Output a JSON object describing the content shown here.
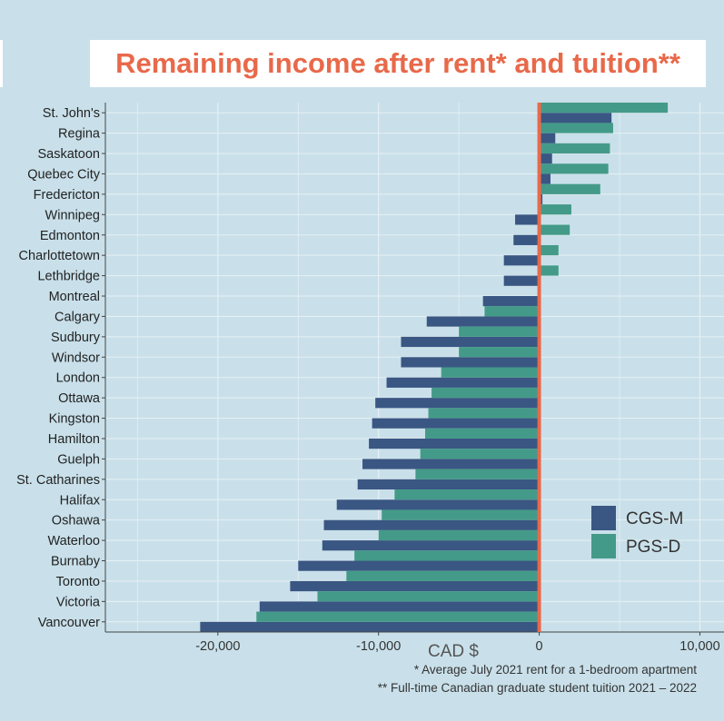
{
  "title": "Remaining income after rent* and tuition**",
  "footnotes": [
    "* Average July 2021 rent for a 1-bedroom apartment",
    "** Full-time Canadian graduate student tuition 2021 – 2022"
  ],
  "colors": {
    "background": "#c9e0ea",
    "cgs_m": "#3a5683",
    "pgs_d": "#449a88",
    "zero_line": "#e8694a",
    "title": "#e8694a"
  },
  "chart_data": {
    "type": "bar",
    "orientation": "horizontal",
    "xlabel": "CAD $",
    "ylabel": "",
    "xlim": [
      -27000,
      11500
    ],
    "x_ticks": [
      {
        "value": -20000,
        "label": "-20,000"
      },
      {
        "value": -10000,
        "label": "-10,000"
      },
      {
        "value": 0,
        "label": "0"
      },
      {
        "value": 10000,
        "label": "10,000"
      }
    ],
    "grid": true,
    "legend_position": "bottom-right",
    "categories": [
      "St. John's",
      "Regina",
      "Saskatoon",
      "Quebec City",
      "Fredericton",
      "Winnipeg",
      "Edmonton",
      "Charlottetown",
      "Lethbridge",
      "Montreal",
      "Calgary",
      "Sudbury",
      "Windsor",
      "London",
      "Ottawa",
      "Kingston",
      "Hamilton",
      "Guelph",
      "St. Catharines",
      "Halifax",
      "Oshawa",
      "Waterloo",
      "Burnaby",
      "Toronto",
      "Victoria",
      "Vancouver"
    ],
    "series": [
      {
        "name": "CGS-M",
        "color": "#3a5683",
        "values": [
          4500,
          1000,
          800,
          700,
          200,
          -1500,
          -1600,
          -2200,
          -2200,
          -3500,
          -7000,
          -8600,
          -8600,
          -9500,
          -10200,
          -10400,
          -10600,
          -11000,
          -11300,
          -12600,
          -13400,
          -13500,
          -15000,
          -15500,
          -17400,
          -21100
        ]
      },
      {
        "name": "PGS-D",
        "color": "#449a88",
        "values": [
          8000,
          4600,
          4400,
          4300,
          3800,
          2000,
          1900,
          1200,
          1200,
          -100,
          -3400,
          -5000,
          -5000,
          -6100,
          -6700,
          -6900,
          -7100,
          -7400,
          -7700,
          -9000,
          -9800,
          -10000,
          -11500,
          -12000,
          -13800,
          -17600
        ]
      }
    ]
  }
}
